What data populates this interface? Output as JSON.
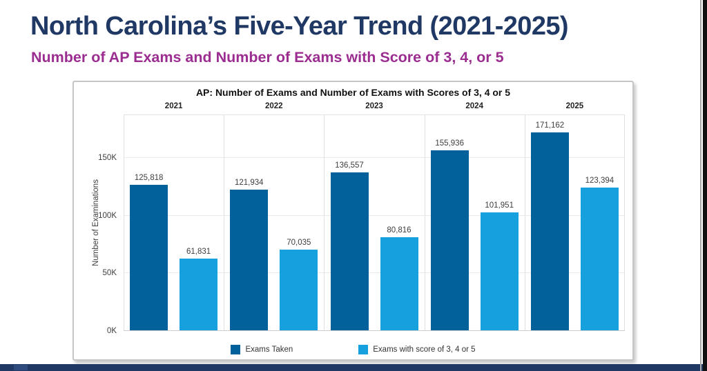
{
  "slide": {
    "title": "North Carolina’s Five-Year Trend (2021-2025)",
    "subtitle": "Number of AP Exams and Number of Exams with Score of 3, 4, or 5",
    "title_color": "#1f3864",
    "subtitle_color": "#9b2c90",
    "footer_color": "#1f3864"
  },
  "chart_data": {
    "type": "bar",
    "title": "AP: Number of Exams and Number of Exams with Scores of 3, 4 or 5",
    "categories": [
      "2021",
      "2022",
      "2023",
      "2024",
      "2025"
    ],
    "series": [
      {
        "name": "Exams Taken",
        "color": "#02609b",
        "values": [
          125818,
          121934,
          136557,
          155936,
          171162
        ]
      },
      {
        "name": "Exams with score of 3, 4 or 5",
        "color": "#17a0de",
        "values": [
          61831,
          70035,
          80816,
          101951,
          123394
        ]
      }
    ],
    "xlabel": "",
    "ylabel": "Number of Examinations",
    "yticks": [
      {
        "value": 0,
        "label": "0K"
      },
      {
        "value": 50000,
        "label": "50K"
      },
      {
        "value": 100000,
        "label": "100K"
      },
      {
        "value": 150000,
        "label": "150K"
      }
    ],
    "ylim": [
      0,
      187500
    ],
    "grid": true,
    "legend_position": "bottom"
  }
}
